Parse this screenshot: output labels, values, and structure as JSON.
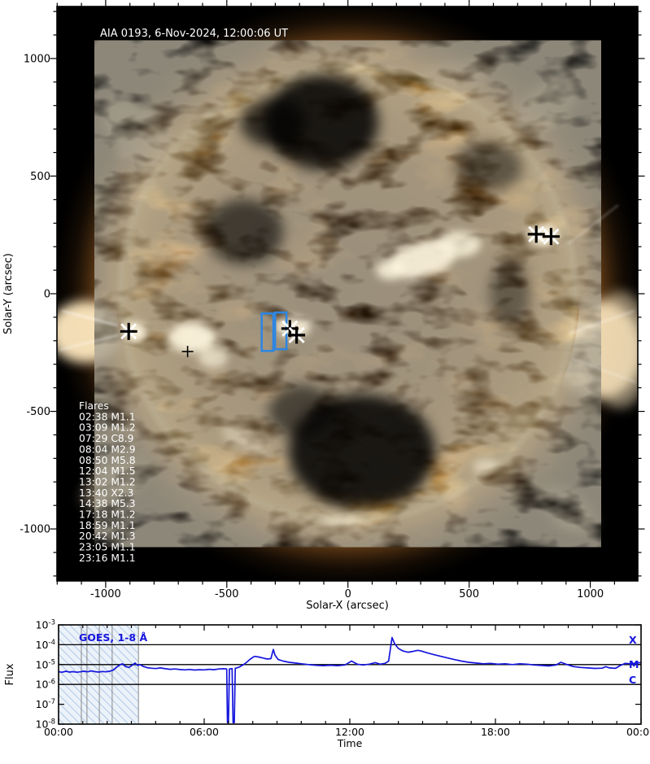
{
  "page": {
    "background": "#ffffff"
  },
  "chart_data": [
    {
      "type": "heatmap",
      "description": "Full-disk solar EUV image with flare position markers and field-of-view boxes",
      "title": "AIA 0193, 6-Nov-2024, 12:00:06 UT",
      "xlabel": "Solar-X (arcsec)",
      "ylabel": "Solar-Y (arcsec)",
      "x_ticks": [
        -1000,
        -500,
        0,
        500,
        1000
      ],
      "y_ticks": [
        -1000,
        -500,
        0,
        500,
        1000
      ],
      "minor_tick_step": 100,
      "xlim": [
        -1201,
        1196
      ],
      "ylim": [
        -1221,
        1221
      ],
      "flares_header": "Flares",
      "flare_list": [
        "02:38 M1.1",
        "03:09 M1.2",
        "07:29 C8.9",
        "08:04 M2.9",
        "08:50 M5.8",
        "12:04 M1.5",
        "13:02 M1.2",
        "13:40 X2.3",
        "14:38 M5.3",
        "17:18 M1.2",
        "18:59 M1.1",
        "20:42 M1.3",
        "23:05 M1.1",
        "23:16 M1.1"
      ],
      "flare_markers": [
        {
          "x": -905,
          "y": -160,
          "style": "plus-cross"
        },
        {
          "x": -662,
          "y": -246,
          "style": "plus-small"
        },
        {
          "x": -240,
          "y": -148,
          "style": "plus-cross"
        },
        {
          "x": -212,
          "y": -176,
          "style": "plus-cross"
        },
        {
          "x": 777,
          "y": 253,
          "style": "plus-cross"
        },
        {
          "x": 838,
          "y": 243,
          "style": "plus-cross"
        }
      ],
      "fov_rects": [
        {
          "x_min": -356,
          "x_max": -308,
          "y_min": -243,
          "y_max": -84
        },
        {
          "x_min": -301,
          "x_max": -254,
          "y_min": -236,
          "y_max": -80
        }
      ],
      "marker_color": "#000000",
      "marker_cross_color": "#ffffff",
      "fov_color": "#2e86e0"
    },
    {
      "type": "line",
      "title": "GOES, 1-8 Å",
      "xlabel": "Time",
      "ylabel": "Flux",
      "x_tick_labels": [
        "00:00",
        "06:00",
        "12:00",
        "18:00",
        "00:00"
      ],
      "x_tick_hours": [
        0,
        6,
        12,
        18,
        24
      ],
      "minor_tick_hours": 1,
      "ylim_exponents": [
        -8,
        -3
      ],
      "y_tick_exponents": [
        -3,
        -4,
        -5,
        -6,
        -7,
        -8
      ],
      "level_lines": [
        {
          "flux": 0.0001,
          "label": "X"
        },
        {
          "flux": 1e-05,
          "label": "M"
        },
        {
          "flux": 1e-06,
          "label": "C"
        }
      ],
      "line_color": "#1515dd",
      "no_data_hatch": {
        "start_h": 0,
        "end_h": 3.29,
        "divider_hours": [
          0.94,
          1.17,
          1.68,
          2.21
        ]
      },
      "series": [
        {
          "name": "GOES, 1-8 Å",
          "points": [
            [
              0,
              4.3e-06
            ],
            [
              0.15,
              4.1e-06
            ],
            [
              0.3,
              4.6e-06
            ],
            [
              0.45,
              4.2e-06
            ],
            [
              0.6,
              4.4e-06
            ],
            [
              0.75,
              4.1e-06
            ],
            [
              0.9,
              4.3e-06
            ],
            [
              1.05,
              4.6e-06
            ],
            [
              1.2,
              4.3e-06
            ],
            [
              1.35,
              4.8e-06
            ],
            [
              1.5,
              4.4e-06
            ],
            [
              1.65,
              4.2e-06
            ],
            [
              1.8,
              4.5e-06
            ],
            [
              1.95,
              4.3e-06
            ],
            [
              2.1,
              4.6e-06
            ],
            [
              2.25,
              5.2e-06
            ],
            [
              2.4,
              7.5e-06
            ],
            [
              2.55,
              1e-05
            ],
            [
              2.63,
              1.1e-05
            ],
            [
              2.75,
              8e-06
            ],
            [
              2.9,
              7.2e-06
            ],
            [
              3.05,
              9.5e-06
            ],
            [
              3.15,
              1.2e-05
            ],
            [
              3.25,
              9e-06
            ],
            [
              3.35,
              1e-05
            ],
            [
              3.5,
              8e-06
            ],
            [
              3.65,
              7e-06
            ],
            [
              3.8,
              6.6e-06
            ],
            [
              4.0,
              6.3e-06
            ],
            [
              4.2,
              6.8e-06
            ],
            [
              4.4,
              6.2e-06
            ],
            [
              4.6,
              5.8e-06
            ],
            [
              4.8,
              6e-06
            ],
            [
              5.0,
              5.6e-06
            ],
            [
              5.2,
              5.4e-06
            ],
            [
              5.4,
              5.7e-06
            ],
            [
              5.6,
              5.3e-06
            ],
            [
              5.8,
              5.5e-06
            ],
            [
              6.0,
              5.4e-06
            ],
            [
              6.2,
              5.8e-06
            ],
            [
              6.4,
              5.5e-06
            ],
            [
              6.6,
              6e-06
            ],
            [
              6.8,
              6.2e-06
            ],
            [
              6.93,
              6e-06
            ],
            [
              6.96,
              1.2e-08
            ],
            [
              7.0,
              1.2e-08
            ],
            [
              7.04,
              6e-06
            ],
            [
              7.15,
              6.3e-06
            ],
            [
              7.19,
              1.2e-08
            ],
            [
              7.24,
              1.2e-08
            ],
            [
              7.28,
              6.5e-06
            ],
            [
              7.45,
              7.5e-06
            ],
            [
              7.6,
              9.5e-06
            ],
            [
              7.75,
              1.3e-05
            ],
            [
              7.9,
              1.9e-05
            ],
            [
              8.07,
              2.6e-05
            ],
            [
              8.25,
              2.4e-05
            ],
            [
              8.45,
              2.1e-05
            ],
            [
              8.6,
              1.9e-05
            ],
            [
              8.75,
              2e-05
            ],
            [
              8.85,
              5.8e-05
            ],
            [
              8.92,
              3e-05
            ],
            [
              9.05,
              1.8e-05
            ],
            [
              9.25,
              1.5e-05
            ],
            [
              9.5,
              1.3e-05
            ],
            [
              9.75,
              1.2e-05
            ],
            [
              10.0,
              1.1e-05
            ],
            [
              10.3,
              1e-05
            ],
            [
              10.6,
              9.2e-06
            ],
            [
              10.9,
              8.8e-06
            ],
            [
              11.2,
              9.3e-06
            ],
            [
              11.5,
              8.8e-06
            ],
            [
              11.8,
              9.5e-06
            ],
            [
              12.07,
              1.5e-05
            ],
            [
              12.3,
              1.05e-05
            ],
            [
              12.55,
              9.5e-06
            ],
            [
              12.8,
              1.05e-05
            ],
            [
              13.05,
              1.25e-05
            ],
            [
              13.25,
              1.05e-05
            ],
            [
              13.45,
              1.15e-05
            ],
            [
              13.6,
              1.5e-05
            ],
            [
              13.74,
              0.00023
            ],
            [
              13.85,
              0.00011
            ],
            [
              14.0,
              6.5e-05
            ],
            [
              14.2,
              4.8e-05
            ],
            [
              14.4,
              4.2e-05
            ],
            [
              14.6,
              4.6e-05
            ],
            [
              14.8,
              5.2e-05
            ],
            [
              14.95,
              4.8e-05
            ],
            [
              15.15,
              4e-05
            ],
            [
              15.4,
              3.3e-05
            ],
            [
              15.7,
              2.7e-05
            ],
            [
              16.0,
              2.2e-05
            ],
            [
              16.3,
              1.8e-05
            ],
            [
              16.6,
              1.5e-05
            ],
            [
              16.9,
              1.3e-05
            ],
            [
              17.2,
              1.2e-05
            ],
            [
              17.5,
              1.1e-05
            ],
            [
              17.8,
              1.15e-05
            ],
            [
              18.1,
              1.05e-05
            ],
            [
              18.4,
              1.1e-05
            ],
            [
              18.7,
              1e-05
            ],
            [
              19.0,
              1.1e-05
            ],
            [
              19.3,
              1.05e-05
            ],
            [
              19.6,
              9.5e-06
            ],
            [
              19.9,
              9e-06
            ],
            [
              20.2,
              8.5e-06
            ],
            [
              20.5,
              9.5e-06
            ],
            [
              20.7,
              1.3e-05
            ],
            [
              20.95,
              1e-05
            ],
            [
              21.2,
              8e-06
            ],
            [
              21.5,
              7.2e-06
            ],
            [
              21.8,
              6.8e-06
            ],
            [
              22.1,
              6.4e-06
            ],
            [
              22.4,
              6.6e-06
            ],
            [
              22.55,
              7.8e-06
            ],
            [
              22.7,
              6.8e-06
            ],
            [
              22.95,
              6.5e-06
            ],
            [
              23.15,
              9e-06
            ],
            [
              23.35,
              1.15e-05
            ],
            [
              23.6,
              1.1e-05
            ],
            [
              23.8,
              1.2e-05
            ],
            [
              24,
              1.25e-05
            ]
          ]
        }
      ]
    }
  ]
}
